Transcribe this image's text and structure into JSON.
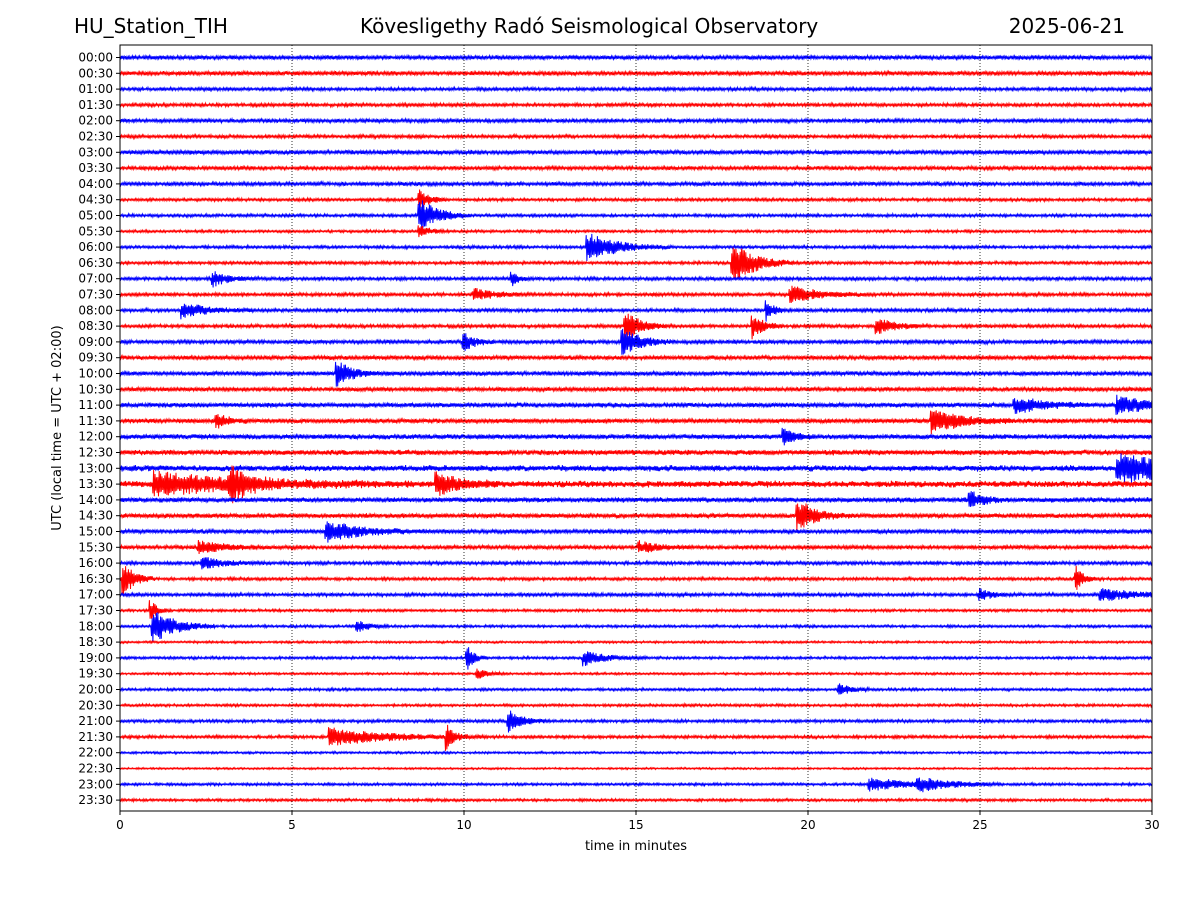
{
  "header": {
    "station": "HU_Station_TIH",
    "observatory": "Kövesligethy Radó Seismological Observatory",
    "date": "2025-06-21"
  },
  "chart_data": {
    "type": "line",
    "title": "Kövesligethy Radó Seismological Observatory",
    "xlabel": "time in minutes",
    "ylabel": "UTC (local time = UTC + 02:00)",
    "xlim": [
      0,
      30
    ],
    "xticks": [
      0,
      5,
      10,
      15,
      20,
      25,
      30
    ],
    "grid": "vertical dotted at x ticks",
    "trace_colors": [
      "#0000ff",
      "#ff0000"
    ],
    "rows": [
      "00:00",
      "00:30",
      "01:00",
      "01:30",
      "02:00",
      "02:30",
      "03:00",
      "03:30",
      "04:00",
      "04:30",
      "05:00",
      "05:30",
      "06:00",
      "06:30",
      "07:00",
      "07:30",
      "08:00",
      "08:30",
      "09:00",
      "09:30",
      "10:00",
      "10:30",
      "11:00",
      "11:30",
      "12:00",
      "12:30",
      "13:00",
      "13:30",
      "14:00",
      "14:30",
      "15:00",
      "15:30",
      "16:00",
      "16:30",
      "17:00",
      "17:30",
      "18:00",
      "18:30",
      "19:00",
      "19:30",
      "20:00",
      "20:30",
      "21:00",
      "21:30",
      "22:00",
      "22:30",
      "23:00",
      "23:30"
    ],
    "noise_level": [
      0.55,
      0.55,
      0.45,
      0.45,
      0.5,
      0.45,
      0.55,
      0.5,
      0.5,
      0.4,
      0.4,
      0.35,
      0.4,
      0.4,
      0.45,
      0.45,
      0.45,
      0.45,
      0.5,
      0.55,
      0.55,
      0.55,
      0.6,
      0.6,
      0.65,
      0.7,
      0.8,
      0.85,
      0.65,
      0.6,
      0.55,
      0.5,
      0.45,
      0.4,
      0.45,
      0.35,
      0.35,
      0.3,
      0.35,
      0.3,
      0.35,
      0.35,
      0.4,
      0.4,
      0.3,
      0.25,
      0.35,
      0.35
    ],
    "events": [
      {
        "row": 10,
        "x": 8.7,
        "amp": 18,
        "dur": 0.5
      },
      {
        "row": 9,
        "x": 8.7,
        "amp": 10,
        "dur": 0.3
      },
      {
        "row": 11,
        "x": 8.7,
        "amp": 6,
        "dur": 0.3
      },
      {
        "row": 12,
        "x": 13.6,
        "amp": 14,
        "dur": 0.8
      },
      {
        "row": 13,
        "x": 17.8,
        "amp": 22,
        "dur": 0.6
      },
      {
        "row": 14,
        "x": 2.7,
        "amp": 8,
        "dur": 0.4
      },
      {
        "row": 14,
        "x": 11.4,
        "amp": 7,
        "dur": 0.2
      },
      {
        "row": 15,
        "x": 10.3,
        "amp": 6,
        "dur": 0.5
      },
      {
        "row": 15,
        "x": 19.5,
        "amp": 8,
        "dur": 0.8
      },
      {
        "row": 16,
        "x": 1.8,
        "amp": 8,
        "dur": 0.7
      },
      {
        "row": 16,
        "x": 18.8,
        "amp": 10,
        "dur": 0.2
      },
      {
        "row": 17,
        "x": 14.7,
        "amp": 16,
        "dur": 0.4
      },
      {
        "row": 17,
        "x": 18.4,
        "amp": 12,
        "dur": 0.3
      },
      {
        "row": 17,
        "x": 22.0,
        "amp": 8,
        "dur": 0.5
      },
      {
        "row": 18,
        "x": 14.6,
        "amp": 14,
        "dur": 0.5
      },
      {
        "row": 18,
        "x": 10.0,
        "amp": 9,
        "dur": 0.3
      },
      {
        "row": 20,
        "x": 6.3,
        "amp": 14,
        "dur": 0.4
      },
      {
        "row": 22,
        "x": 26.0,
        "amp": 8,
        "dur": 0.8
      },
      {
        "row": 22,
        "x": 29.0,
        "amp": 8,
        "dur": 1.0
      },
      {
        "row": 23,
        "x": 23.6,
        "amp": 12,
        "dur": 0.8
      },
      {
        "row": 23,
        "x": 2.8,
        "amp": 8,
        "dur": 0.3
      },
      {
        "row": 24,
        "x": 19.3,
        "amp": 9,
        "dur": 0.3
      },
      {
        "row": 26,
        "x": 29.0,
        "amp": 14,
        "dur": 2.0
      },
      {
        "row": 27,
        "x": 1.0,
        "amp": 12,
        "dur": 2.5
      },
      {
        "row": 27,
        "x": 3.2,
        "amp": 14,
        "dur": 0.5
      },
      {
        "row": 27,
        "x": 9.2,
        "amp": 12,
        "dur": 0.6
      },
      {
        "row": 28,
        "x": 24.7,
        "amp": 8,
        "dur": 0.4
      },
      {
        "row": 29,
        "x": 19.7,
        "amp": 16,
        "dur": 0.5
      },
      {
        "row": 30,
        "x": 6.0,
        "amp": 10,
        "dur": 1.0
      },
      {
        "row": 31,
        "x": 2.3,
        "amp": 6,
        "dur": 0.7
      },
      {
        "row": 31,
        "x": 15.1,
        "amp": 6,
        "dur": 0.5
      },
      {
        "row": 32,
        "x": 2.4,
        "amp": 6,
        "dur": 0.6
      },
      {
        "row": 33,
        "x": 0.1,
        "amp": 18,
        "dur": 0.3
      },
      {
        "row": 33,
        "x": 27.8,
        "amp": 12,
        "dur": 0.2
      },
      {
        "row": 34,
        "x": 25.0,
        "amp": 6,
        "dur": 0.3
      },
      {
        "row": 34,
        "x": 28.5,
        "amp": 6,
        "dur": 1.0
      },
      {
        "row": 35,
        "x": 0.9,
        "amp": 10,
        "dur": 0.2
      },
      {
        "row": 36,
        "x": 0.95,
        "amp": 18,
        "dur": 0.6
      },
      {
        "row": 36,
        "x": 6.9,
        "amp": 6,
        "dur": 0.3
      },
      {
        "row": 38,
        "x": 10.1,
        "amp": 12,
        "dur": 0.2
      },
      {
        "row": 38,
        "x": 13.5,
        "amp": 7,
        "dur": 0.6
      },
      {
        "row": 39,
        "x": 10.4,
        "amp": 5,
        "dur": 0.3
      },
      {
        "row": 40,
        "x": 20.9,
        "amp": 6,
        "dur": 0.3
      },
      {
        "row": 42,
        "x": 11.3,
        "amp": 11,
        "dur": 0.4
      },
      {
        "row": 43,
        "x": 6.1,
        "amp": 9,
        "dur": 1.5
      },
      {
        "row": 43,
        "x": 9.5,
        "amp": 12,
        "dur": 0.2
      },
      {
        "row": 46,
        "x": 21.8,
        "amp": 6,
        "dur": 1.2
      },
      {
        "row": 46,
        "x": 23.2,
        "amp": 6,
        "dur": 0.8
      }
    ]
  }
}
